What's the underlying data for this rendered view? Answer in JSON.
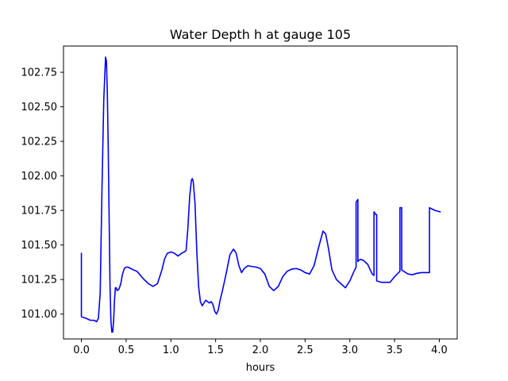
{
  "chart_data": {
    "type": "line",
    "title": "Water Depth h at gauge 105",
    "xlabel": "hours",
    "ylabel": "",
    "xlim": [
      -0.2,
      4.2
    ],
    "ylim": [
      100.82,
      102.94
    ],
    "grid": false,
    "x_ticks": [
      0.0,
      0.5,
      1.0,
      1.5,
      2.0,
      2.5,
      3.0,
      3.5,
      4.0
    ],
    "x_tick_labels": [
      "0.0",
      "0.5",
      "1.0",
      "1.5",
      "2.0",
      "2.5",
      "3.0",
      "3.5",
      "4.0"
    ],
    "y_ticks": [
      101.0,
      101.25,
      101.5,
      101.75,
      102.0,
      102.25,
      102.5,
      102.75
    ],
    "y_tick_labels": [
      "101.00",
      "101.25",
      "101.50",
      "101.75",
      "102.00",
      "102.25",
      "102.50",
      "102.75"
    ],
    "series": [
      {
        "color": "#0000ff",
        "x": [
          0.0,
          0.0,
          0.001,
          0.05,
          0.1,
          0.14,
          0.17,
          0.19,
          0.21,
          0.23,
          0.25,
          0.27,
          0.28,
          0.29,
          0.3,
          0.31,
          0.32,
          0.33,
          0.34,
          0.35,
          0.36,
          0.37,
          0.38,
          0.39,
          0.4,
          0.42,
          0.44,
          0.46,
          0.48,
          0.5,
          0.52,
          0.55,
          0.58,
          0.62,
          0.66,
          0.7,
          0.75,
          0.8,
          0.85,
          0.9,
          0.93,
          0.96,
          1.0,
          1.04,
          1.08,
          1.12,
          1.15,
          1.17,
          1.19,
          1.21,
          1.23,
          1.24,
          1.25,
          1.27,
          1.29,
          1.31,
          1.33,
          1.35,
          1.37,
          1.39,
          1.41,
          1.43,
          1.45,
          1.47,
          1.49,
          1.51,
          1.53,
          1.55,
          1.58,
          1.62,
          1.66,
          1.7,
          1.73,
          1.76,
          1.79,
          1.82,
          1.86,
          1.9,
          1.95,
          2.0,
          2.05,
          2.1,
          2.15,
          2.2,
          2.25,
          2.3,
          2.35,
          2.4,
          2.45,
          2.5,
          2.55,
          2.6,
          2.65,
          2.7,
          2.73,
          2.76,
          2.8,
          2.85,
          2.9,
          2.95,
          3.0,
          3.04,
          3.07,
          3.07,
          3.08,
          3.09,
          3.09,
          3.1,
          3.12,
          3.15,
          3.2,
          3.25,
          3.27,
          3.27,
          3.29,
          3.3,
          3.3,
          3.35,
          3.4,
          3.45,
          3.5,
          3.56,
          3.56,
          3.58,
          3.58,
          3.6,
          3.65,
          3.7,
          3.75,
          3.8,
          3.85,
          3.89,
          3.89,
          3.92,
          3.95,
          3.98,
          4.01
        ],
        "y": [
          101.44,
          100.98,
          100.98,
          100.97,
          100.955,
          100.955,
          100.945,
          100.97,
          101.15,
          101.9,
          102.55,
          102.86,
          102.83,
          102.6,
          102.2,
          101.7,
          101.2,
          100.95,
          100.87,
          100.87,
          100.95,
          101.1,
          101.19,
          101.19,
          101.17,
          101.18,
          101.22,
          101.29,
          101.33,
          101.34,
          101.34,
          101.33,
          101.32,
          101.31,
          101.28,
          101.25,
          101.22,
          101.2,
          101.22,
          101.32,
          101.4,
          101.44,
          101.45,
          101.44,
          101.42,
          101.44,
          101.45,
          101.46,
          101.62,
          101.85,
          101.97,
          101.98,
          101.96,
          101.8,
          101.45,
          101.2,
          101.09,
          101.06,
          101.08,
          101.1,
          101.09,
          101.08,
          101.09,
          101.07,
          101.02,
          101.0,
          101.03,
          101.1,
          101.18,
          101.3,
          101.43,
          101.47,
          101.44,
          101.35,
          101.3,
          101.33,
          101.35,
          101.345,
          101.34,
          101.33,
          101.29,
          101.2,
          101.17,
          101.2,
          101.27,
          101.31,
          101.325,
          101.33,
          101.32,
          101.3,
          101.29,
          101.35,
          101.48,
          101.6,
          101.58,
          101.48,
          101.32,
          101.25,
          101.22,
          101.19,
          101.24,
          101.3,
          101.34,
          101.81,
          101.82,
          101.83,
          101.38,
          101.39,
          101.395,
          101.39,
          101.36,
          101.29,
          101.28,
          101.74,
          101.72,
          101.72,
          101.24,
          101.23,
          101.23,
          101.23,
          101.27,
          101.31,
          101.77,
          101.77,
          101.32,
          101.31,
          101.29,
          101.285,
          101.295,
          101.3,
          101.3,
          101.3,
          101.77,
          101.76,
          101.75,
          101.745,
          101.74
        ]
      }
    ]
  }
}
